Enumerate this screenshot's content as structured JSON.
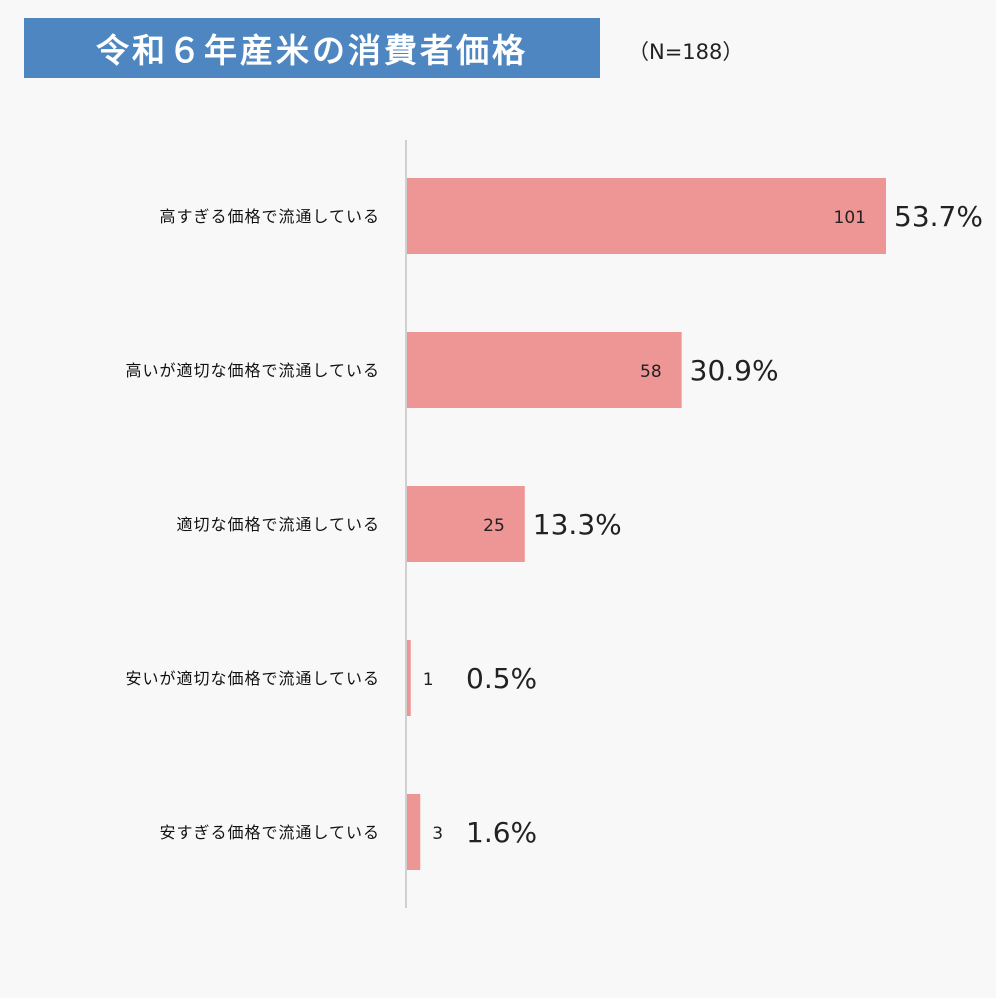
{
  "title": "令和６年産米の消費者価格",
  "sample_size": "（N=188）",
  "colors": {
    "title_bg": "#4e86c1",
    "bar": "#ee9596",
    "axis": "#d0d0d0"
  },
  "chart_data": {
    "type": "bar",
    "orientation": "horizontal",
    "categories": [
      "高すぎる価格で流通している",
      "高いが適切な価格で流通している",
      "適切な価格で流通している",
      "安いが適切な価格で流通している",
      "安すぎる価格で流通している"
    ],
    "values": [
      101,
      58,
      25,
      1,
      3
    ],
    "value_labels": [
      "101",
      "58",
      "25",
      "1",
      "3"
    ],
    "percent_labels": [
      "53.7%",
      "30.9%",
      "13.3%",
      "0.5%",
      "1.6%"
    ],
    "xlim": [
      0,
      101
    ],
    "grid": false,
    "legend": "none"
  }
}
